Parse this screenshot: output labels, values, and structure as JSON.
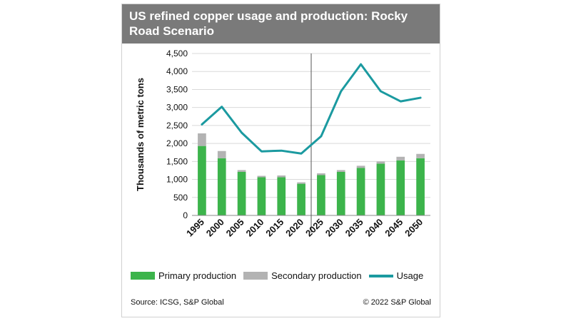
{
  "chart_data": {
    "type": "bar",
    "title": "US refined copper usage and production: Rocky Road Scenario",
    "ylabel": "Thousands of metric tons",
    "xlabel": "",
    "categories": [
      "1995",
      "2000",
      "2005",
      "2010",
      "2015",
      "2020",
      "2025",
      "2030",
      "2035",
      "2040",
      "2045",
      "2050"
    ],
    "ylim": [
      0,
      4500
    ],
    "yticks": [
      0,
      500,
      1000,
      1500,
      2000,
      2500,
      3000,
      3500,
      4000,
      4500
    ],
    "ytick_labels": [
      "0",
      "500",
      "1,000",
      "1,500",
      "2,000",
      "2,500",
      "3,000",
      "3,500",
      "4,000",
      "4,500"
    ],
    "grid": true,
    "stacked": true,
    "divider_after_category": "2020",
    "series": [
      {
        "name": "Primary production",
        "kind": "bar",
        "color": "#3cb44b",
        "values": [
          1930,
          1590,
          1210,
          1060,
          1060,
          880,
          1120,
          1210,
          1320,
          1440,
          1530,
          1590
        ]
      },
      {
        "name": "Secondary production",
        "kind": "bar",
        "color": "#b3b3b3",
        "values": [
          350,
          200,
          50,
          40,
          50,
          40,
          50,
          50,
          60,
          60,
          100,
          120
        ]
      },
      {
        "name": "Usage",
        "kind": "line",
        "color": "#1b9aa0",
        "values": [
          2530,
          3020,
          2300,
          1780,
          1800,
          1720,
          2200,
          3450,
          4200,
          3450,
          3170,
          3270
        ]
      }
    ],
    "legend_position": "bottom"
  },
  "footer": {
    "source": "Source: ICSG, S&P Global",
    "copyright": "© 2022 S&P Global"
  }
}
